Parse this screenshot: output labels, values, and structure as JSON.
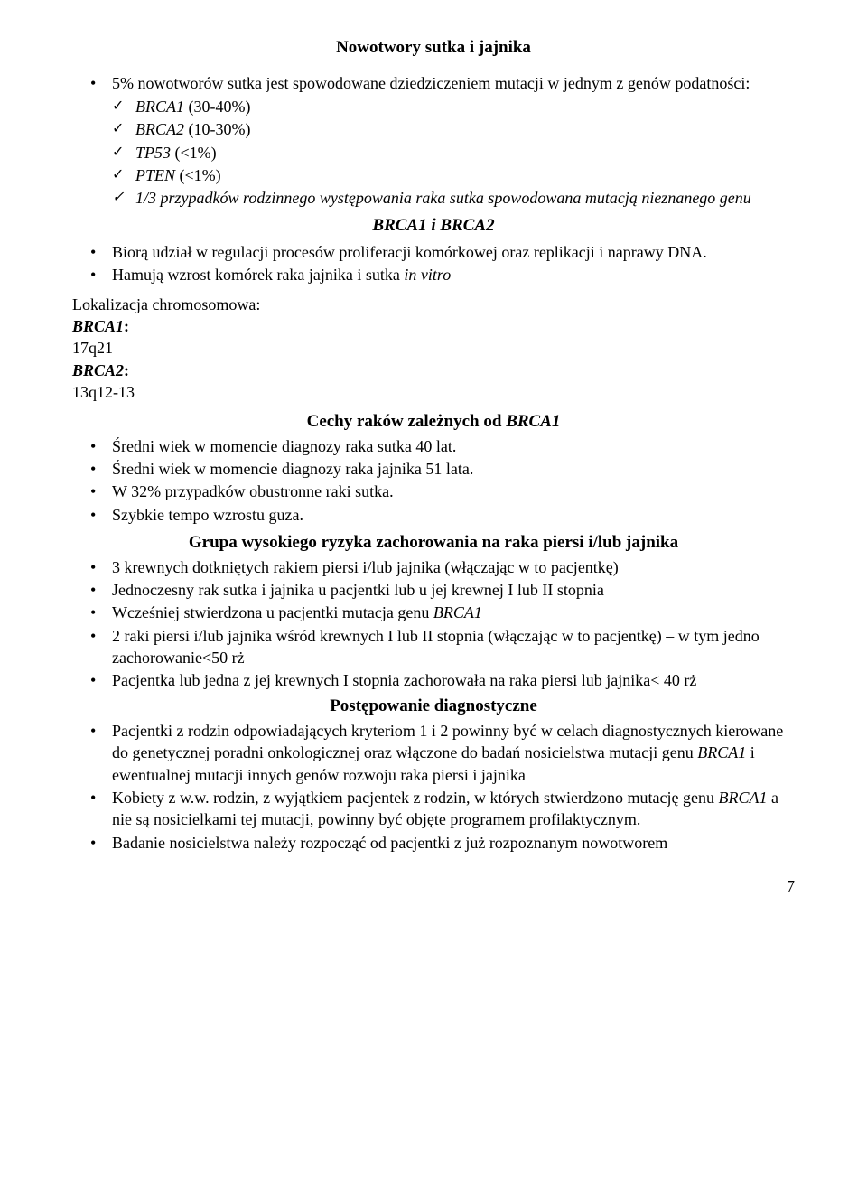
{
  "title": "Nowotwory sutka i jajnika",
  "intro_bullet": "5% nowotworów sutka jest spowodowane dziedziczeniem mutacji w jednym z genów podatności:",
  "genes": [
    {
      "name": "BRCA1",
      "pct": " (30-40%)"
    },
    {
      "name": "BRCA2",
      "pct": " (10-30%)"
    },
    {
      "name": "TP53",
      "pct": " (<1%)"
    },
    {
      "name": "PTEN",
      "pct": " (<1%)"
    }
  ],
  "gene_note_lead": "1/3 przypadków rodzinnego występowania raka sutka spowodowana mutacją nieznanego genu",
  "section_brca_title": "BRCA1 i BRCA2",
  "brca_bullets": [
    "Biorą udział w regulacji procesów proliferacji komórkowej oraz replikacji i naprawy DNA.",
    "Hamują wzrost komórek raka jajnika i sutka "
  ],
  "in_vitro": "in vitro",
  "loc_label": "Lokalizacja chromosomowa:",
  "loc": [
    {
      "gene": "BRCA1",
      "pos": "17q21"
    },
    {
      "gene": "BRCA2",
      "pos": "13q12-13"
    }
  ],
  "cechy_title_a": "Cechy raków zależnych od ",
  "cechy_title_b": "BRCA1",
  "cechy_bullets": [
    "Średni wiek w momencie diagnozy raka sutka 40 lat.",
    "Średni wiek w momencie diagnozy raka jajnika 51 lata.",
    "W 32% przypadków obustronne raki sutka.",
    "Szybkie tempo wzrostu guza."
  ],
  "grupa_title": "Grupa wysokiego ryzyka zachorowania na raka piersi i/lub jajnika",
  "grupa_bullets": [
    {
      "text": "3 krewnych dotkniętych rakiem piersi i/lub jajnika (włączając w to pacjentkę)"
    },
    {
      "text": "Jednoczesny rak sutka i jajnika u pacjentki lub u jej krewnej I lub II stopnia"
    },
    {
      "pre": "Wcześniej stwierdzona u pacjentki mutacja genu ",
      "it": "BRCA1"
    },
    {
      "text": "2 raki piersi i/lub jajnika wśród krewnych I lub II stopnia (włączając w to pacjentkę) – w tym jedno zachorowanie<50 rż"
    },
    {
      "text": "Pacjentka lub jedna z jej krewnych I stopnia zachorowała na raka piersi lub jajnika< 40 rż"
    }
  ],
  "post_title": "Postępowanie diagnostyczne",
  "post_bullets": [
    {
      "pre": "Pacjentki z rodzin odpowiadających kryteriom 1 i 2 powinny być w celach diagnostycznych kierowane do genetycznej poradni onkologicznej oraz włączone do badań nosicielstwa mutacji genu ",
      "it": "BRCA1",
      "post": " i ewentualnej mutacji innych genów rozwoju raka piersi i jajnika"
    },
    {
      "pre": "Kobiety z w.w. rodzin, z wyjątkiem pacjentek z rodzin, w których stwierdzono mutację genu ",
      "it": "BRCA1",
      "post": " a nie są nosicielkami tej mutacji, powinny być objęte programem profilaktycznym."
    },
    {
      "text": "Badanie nosicielstwa należy rozpocząć od pacjentki z już rozpoznanym nowotworem"
    }
  ],
  "page_number": "7"
}
